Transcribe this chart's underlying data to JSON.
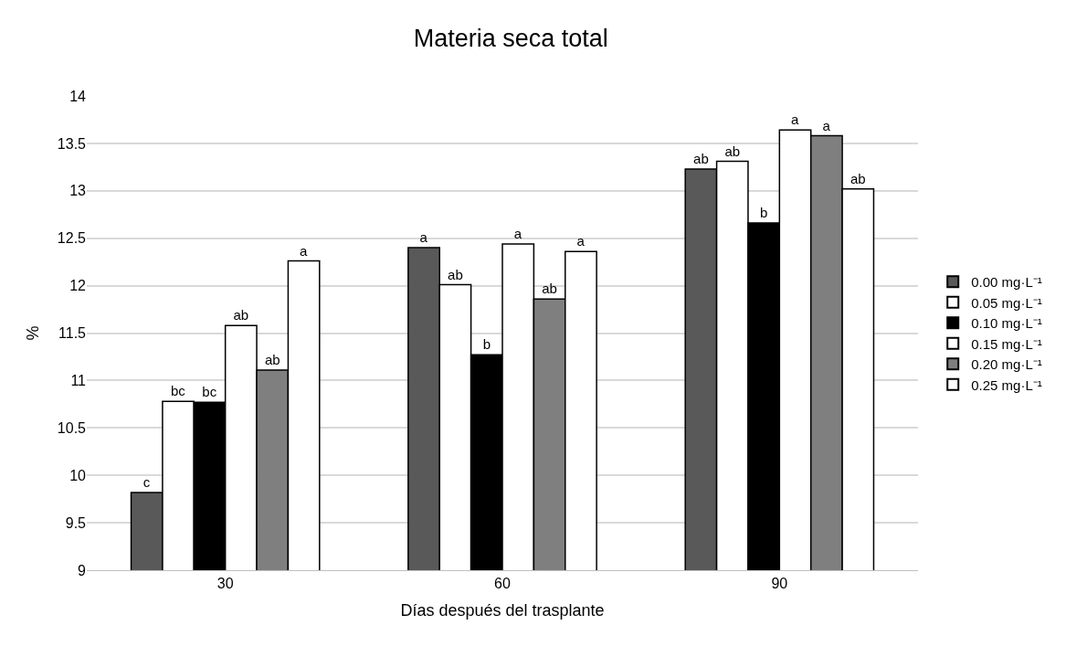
{
  "chart_data": {
    "type": "bar",
    "title": "Materia seca total",
    "xlabel": "Días después del trasplante",
    "ylabel": "%",
    "categories": [
      "30",
      "60",
      "90"
    ],
    "series": [
      {
        "name": "0.00 mg·L⁻¹",
        "color": "#595959",
        "values": [
          9.82,
          12.4,
          13.23
        ],
        "value_labels": [
          "c",
          "a",
          "ab"
        ]
      },
      {
        "name": "0.05 mg·L⁻¹",
        "color": "#ffffff",
        "values": [
          10.78,
          12.01,
          13.31
        ],
        "value_labels": [
          "bc",
          "ab",
          "ab"
        ]
      },
      {
        "name": "0.10 mg·L⁻¹",
        "color": "#000000",
        "values": [
          10.77,
          11.27,
          12.66
        ],
        "value_labels": [
          "bc",
          "b",
          "b"
        ]
      },
      {
        "name": "0.15 mg·L⁻¹",
        "color": "#ffffff",
        "values": [
          11.58,
          12.44,
          13.64
        ],
        "value_labels": [
          "ab",
          "a",
          "a"
        ]
      },
      {
        "name": "0.20 mg·L⁻¹",
        "color": "#7f7f7f",
        "values": [
          11.11,
          11.86,
          13.58
        ],
        "value_labels": [
          "ab",
          "ab",
          "a"
        ]
      },
      {
        "name": "0.25 mg·L⁻¹",
        "color": "#ffffff",
        "values": [
          12.26,
          12.36,
          13.02
        ],
        "value_labels": [
          "a",
          "a",
          "ab"
        ]
      }
    ],
    "ylim": [
      9,
      14
    ],
    "yticks": [
      9,
      9.5,
      10,
      10.5,
      11,
      11.5,
      12,
      12.5,
      13,
      13.5,
      14
    ],
    "grid": "y",
    "legend": "right"
  }
}
